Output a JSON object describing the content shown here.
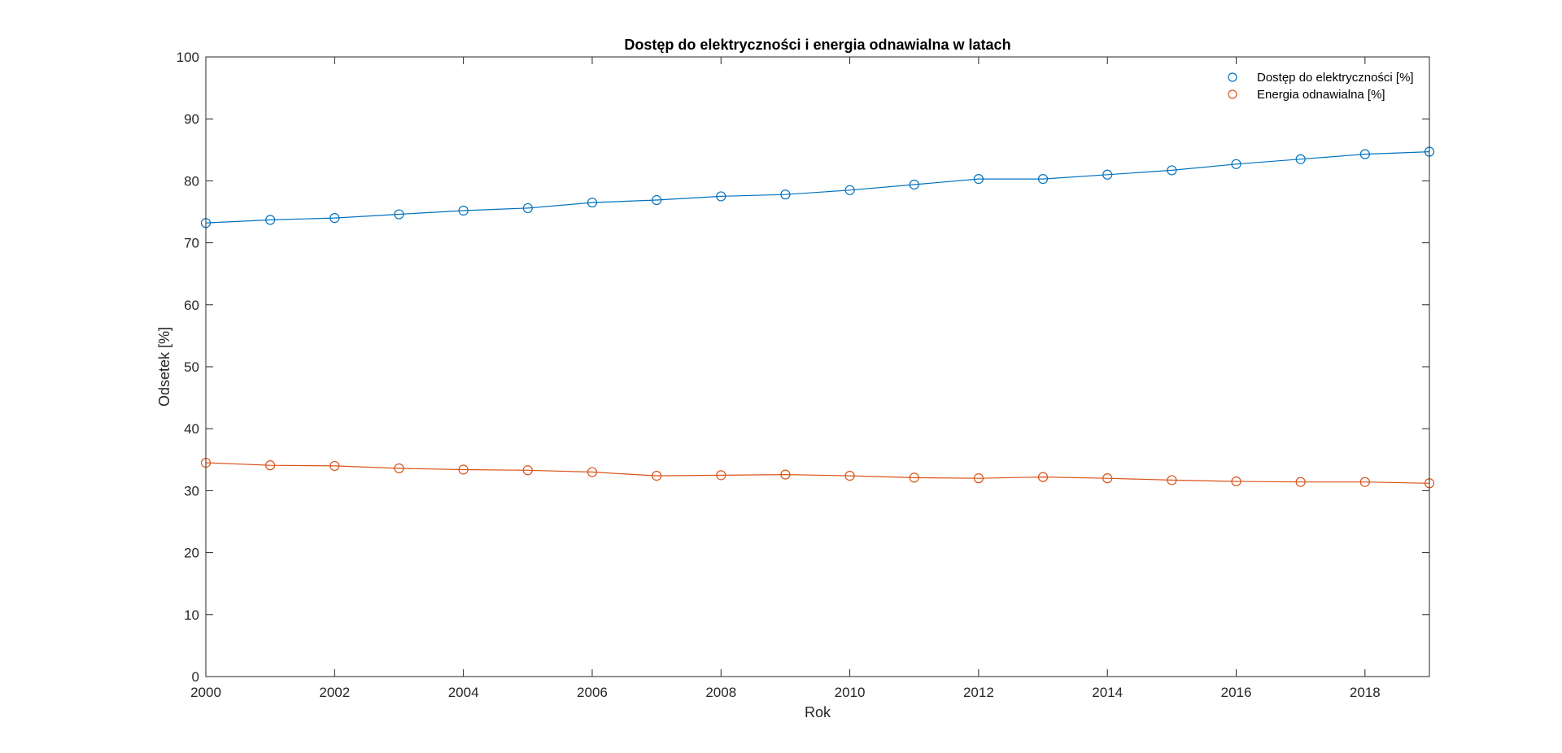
{
  "chart_data": {
    "type": "line",
    "title": "Dostęp do elektryczności i energia odnawialna w latach",
    "xlabel": "Rok",
    "ylabel": "Odsetek [%]",
    "xlim": [
      2000,
      2019
    ],
    "ylim": [
      0,
      100
    ],
    "xticks": [
      2000,
      2002,
      2004,
      2006,
      2008,
      2010,
      2012,
      2014,
      2016,
      2018
    ],
    "yticks": [
      0,
      10,
      20,
      30,
      40,
      50,
      60,
      70,
      80,
      90,
      100
    ],
    "grid": false,
    "legend_position": "top-right",
    "x": [
      2000,
      2001,
      2002,
      2003,
      2004,
      2005,
      2006,
      2007,
      2008,
      2009,
      2010,
      2011,
      2012,
      2013,
      2014,
      2015,
      2016,
      2017,
      2018,
      2019
    ],
    "series": [
      {
        "name": "Dostęp do elektryczności [%]",
        "color": "#0072BD",
        "marker": "circle",
        "values": [
          73.2,
          73.7,
          74.0,
          74.6,
          75.2,
          75.6,
          76.5,
          76.9,
          77.5,
          77.8,
          78.5,
          79.4,
          80.3,
          80.3,
          81.0,
          81.7,
          82.7,
          83.5,
          84.3,
          84.7
        ]
      },
      {
        "name": "Energia odnawialna [%]",
        "color": "#D95319",
        "marker": "circle",
        "values": [
          34.5,
          34.1,
          34.0,
          33.6,
          33.4,
          33.3,
          33.0,
          32.4,
          32.5,
          32.6,
          32.4,
          32.1,
          32.0,
          32.2,
          32.0,
          31.7,
          31.5,
          31.4,
          31.4,
          31.2
        ]
      }
    ]
  }
}
